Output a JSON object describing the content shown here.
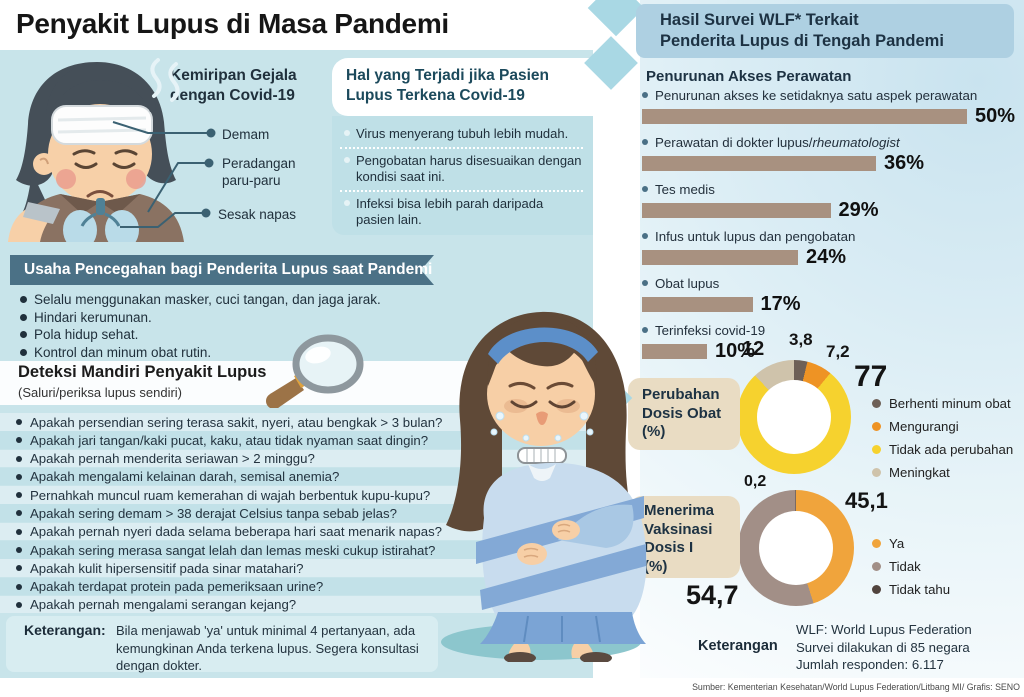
{
  "page": {
    "title": "Penyakit Lupus di Masa Pandemi",
    "source": "Sumber: Kementerian Kesehatan/World Lupus Federation/Litbang MI/ Grafis: SENO"
  },
  "similarity": {
    "title": "Kemiripan Gejala\ndengan Covid-19",
    "symptoms": [
      "Demam",
      "Peradangan paru-paru",
      "Sesak napas"
    ]
  },
  "covid_effects": {
    "title": "Hal yang Terjadi jika Pasien\nLupus Terkena Covid-19",
    "items": [
      "Virus menyerang tubuh lebih mudah.",
      "Pengobatan harus disesuaikan dengan kondisi saat ini.",
      "Infeksi bisa lebih parah daripada pasien lain."
    ]
  },
  "prevention": {
    "title": "Usaha Pencegahan bagi Penderita Lupus saat Pandemi",
    "items": [
      "Selalu menggunakan masker, cuci tangan, dan jaga jarak.",
      "Hindari kerumunan.",
      "Pola hidup sehat.",
      "Kontrol dan minum obat rutin."
    ]
  },
  "self_check": {
    "title": "Deteksi Mandiri Penyakit Lupus",
    "subtitle": "(Saluri/periksa lupus sendiri)",
    "questions": [
      "Apakah persendian sering terasa sakit, nyeri, atau bengkak > 3 bulan?",
      "Apakah jari tangan/kaki pucat, kaku, atau tidak nyaman saat dingin?",
      "Apakah pernah menderita seriawan > 2 minggu?",
      "Apakah mengalami kelainan darah, semisal anemia?",
      "Pernahkah muncul ruam kemerahan di wajah berbentuk kupu-kupu?",
      "Apakah sering demam > 38 derajat Celsius tanpa sebab jelas?",
      "Apakah pernah nyeri dada selama beberapa hari saat menarik napas?",
      "Apakah sering merasa sangat lelah dan lemas meski cukup istirahat?",
      "Apakah kulit hipersensitif pada sinar matahari?",
      "Apakah terdapat protein pada pemeriksaan urine?",
      "Apakah pernah mengalami serangan kejang?"
    ]
  },
  "left_note": {
    "label": "Keterangan:",
    "lines": [
      "Bila menjawab 'ya' untuk minimal 4 pertanyaan, ada",
      "kemungkinan Anda terkena lupus. Segera konsultasi",
      "dengan dokter."
    ]
  },
  "survey": {
    "title": "Hasil Survei WLF* Terkait\nPenderita Lupus di Tengah Pandemi",
    "access": {
      "title": "Penurunan Akses Perawatan",
      "bars": [
        {
          "label": "Penurunan akses ke setidaknya satu aspek perawatan",
          "italic": ""
        },
        {
          "label": "Perawatan di dokter lupus/",
          "italic": "rheumatologist"
        },
        {
          "label": "Tes medis",
          "italic": ""
        },
        {
          "label": "Infus untuk lupus dan pengobatan",
          "italic": ""
        },
        {
          "label": "Obat lupus",
          "italic": ""
        },
        {
          "label": "Terinfeksi covid-19",
          "italic": ""
        }
      ]
    },
    "dose_box_label": "Perubahan\nDosis Obat\n(%)",
    "vax_box_label": "Menerima\nVaksinasi\nDosis I\n(%)",
    "note_label": "Keterangan",
    "note_lines": [
      "WLF: World Lupus Federation",
      "Survei dilakukan di 85 negara",
      "Jumlah responden: 6.117"
    ]
  },
  "chart_data": [
    {
      "type": "bar",
      "orientation": "horizontal",
      "title": "Penurunan Akses Perawatan",
      "categories": [
        "Penurunan akses ke setidaknya satu aspek perawatan",
        "Perawatan di dokter lupus/rheumatologist",
        "Tes medis",
        "Infus untuk lupus dan pengobatan",
        "Obat lupus",
        "Terinfeksi covid-19"
      ],
      "values": [
        50,
        36,
        29,
        24,
        17,
        10
      ],
      "unit": "%",
      "xlim": [
        0,
        50
      ],
      "bar_color": "#a89180"
    },
    {
      "type": "pie",
      "donut": true,
      "title": "Perubahan Dosis Obat (%)",
      "labels": [
        "Berhenti minum obat",
        "Mengurangi",
        "Tidak ada perubahan",
        "Meningkat"
      ],
      "values": [
        3.8,
        7.2,
        77,
        12
      ],
      "display_values": [
        "3,8",
        "7,2",
        "77",
        "12"
      ],
      "colors": [
        "#6e6057",
        "#ee9324",
        "#f6d22e",
        "#cfc3ab"
      ],
      "legend_position": "right"
    },
    {
      "type": "pie",
      "donut": true,
      "title": "Menerima Vaksinasi Dosis I (%)",
      "labels": [
        "Ya",
        "Tidak",
        "Tidak tahu"
      ],
      "values": [
        45.1,
        54.7,
        0.2
      ],
      "display_values": [
        "45,1",
        "54,7",
        "0,2"
      ],
      "colors": [
        "#f0a43c",
        "#a28f87",
        "#51443d"
      ],
      "legend_position": "right"
    }
  ]
}
